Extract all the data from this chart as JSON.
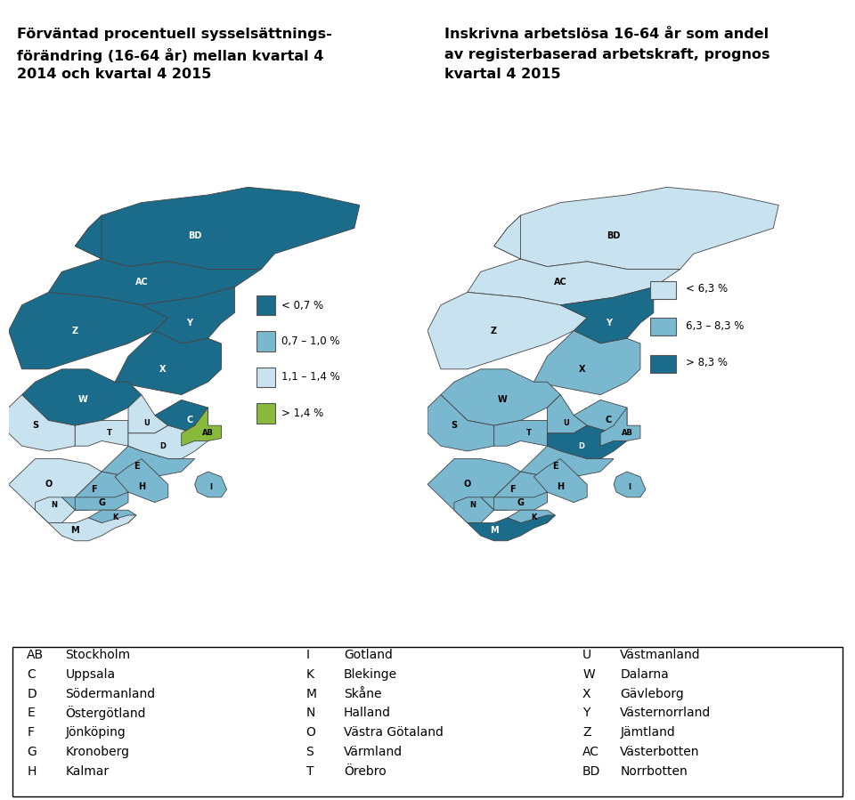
{
  "title_left_line1": "Förväntad procentuell sysselsättnings-",
  "title_left_line2": "förändring (16-64 år) mellan kvartal 4",
  "title_left_line3": "2014 och kvartal 4 2015",
  "title_right_line1": "Inskrivna arbetslösa 16-64 år som andel",
  "title_right_line2": "av registerbaserad arbetskraft, prognos",
  "title_right_line3": "kvartal 4 2015",
  "legend_left": [
    {
      "color": "#1b6b8a",
      "label": "< 0,7 %"
    },
    {
      "color": "#7ab8d0",
      "label": "0,7 – 1,0 %"
    },
    {
      "color": "#c8e3ef",
      "label": "1,1 – 1,4 %"
    },
    {
      "color": "#8aba3c",
      "label": "> 1,4 %"
    }
  ],
  "legend_right": [
    {
      "color": "#c8e3ef",
      "label": "< 6,3 %"
    },
    {
      "color": "#7ab8d0",
      "label": "6,3 – 8,3 %"
    },
    {
      "color": "#1b6b8a",
      "label": "> 8,3 %"
    }
  ],
  "colors_left": {
    "BD": "#1b6b8a",
    "AC": "#1b6b8a",
    "Z": "#1b6b8a",
    "Y": "#1b6b8a",
    "X": "#1b6b8a",
    "W": "#1b6b8a",
    "S": "#c8e3ef",
    "T": "#c8e3ef",
    "U": "#c8e3ef",
    "C": "#1b6b8a",
    "D": "#c8e3ef",
    "AB": "#8aba3c",
    "E": "#7ab8d0",
    "O": "#c8e3ef",
    "F": "#7ab8d0",
    "H": "#7ab8d0",
    "N": "#c8e3ef",
    "G": "#7ab8d0",
    "K": "#7ab8d0",
    "M": "#c8e3ef",
    "I": "#7ab8d0"
  },
  "colors_right": {
    "BD": "#c8e3ef",
    "AC": "#c8e3ef",
    "Z": "#c8e3ef",
    "Y": "#1b6b8a",
    "X": "#7ab8d0",
    "W": "#7ab8d0",
    "S": "#7ab8d0",
    "T": "#7ab8d0",
    "U": "#7ab8d0",
    "C": "#7ab8d0",
    "D": "#1b6b8a",
    "AB": "#7ab8d0",
    "E": "#7ab8d0",
    "O": "#7ab8d0",
    "F": "#7ab8d0",
    "H": "#7ab8d0",
    "N": "#7ab8d0",
    "G": "#7ab8d0",
    "K": "#7ab8d0",
    "M": "#1b6b8a",
    "I": "#7ab8d0"
  },
  "text_color_left": {
    "BD": "white",
    "AC": "white",
    "Z": "white",
    "Y": "white",
    "X": "white",
    "W": "white",
    "S": "black",
    "T": "black",
    "U": "black",
    "C": "white",
    "D": "black",
    "AB": "black",
    "E": "black",
    "O": "black",
    "F": "black",
    "H": "black",
    "N": "black",
    "G": "black",
    "K": "black",
    "M": "black",
    "I": "black"
  },
  "text_color_right": {
    "BD": "black",
    "AC": "black",
    "Z": "black",
    "Y": "white",
    "X": "black",
    "W": "black",
    "S": "black",
    "T": "black",
    "U": "black",
    "C": "black",
    "D": "white",
    "AB": "black",
    "E": "black",
    "O": "black",
    "F": "black",
    "H": "black",
    "N": "black",
    "G": "black",
    "K": "black",
    "M": "white",
    "I": "black"
  },
  "table_rows": [
    [
      "AB",
      "Stockholm",
      "I",
      "Gotland",
      "U",
      "Västmanland"
    ],
    [
      "C",
      "Uppsala",
      "K",
      "Blekinge",
      "W",
      "Dalarna"
    ],
    [
      "D",
      "Södermanland",
      "M",
      "Skåne",
      "X",
      "Gävleborg"
    ],
    [
      "E",
      "Östergötland",
      "N",
      "Halland",
      "Y",
      "Västernorrland"
    ],
    [
      "F",
      "Jönköping",
      "O",
      "Västra Götaland",
      "Z",
      "Jämtland"
    ],
    [
      "G",
      "Kronoberg",
      "S",
      "Värmland",
      "AC",
      "Västerbotten"
    ],
    [
      "H",
      "Kalmar",
      "T",
      "Örebro",
      "BD",
      "Norrbotten"
    ]
  ],
  "bg_color": "#ffffff"
}
